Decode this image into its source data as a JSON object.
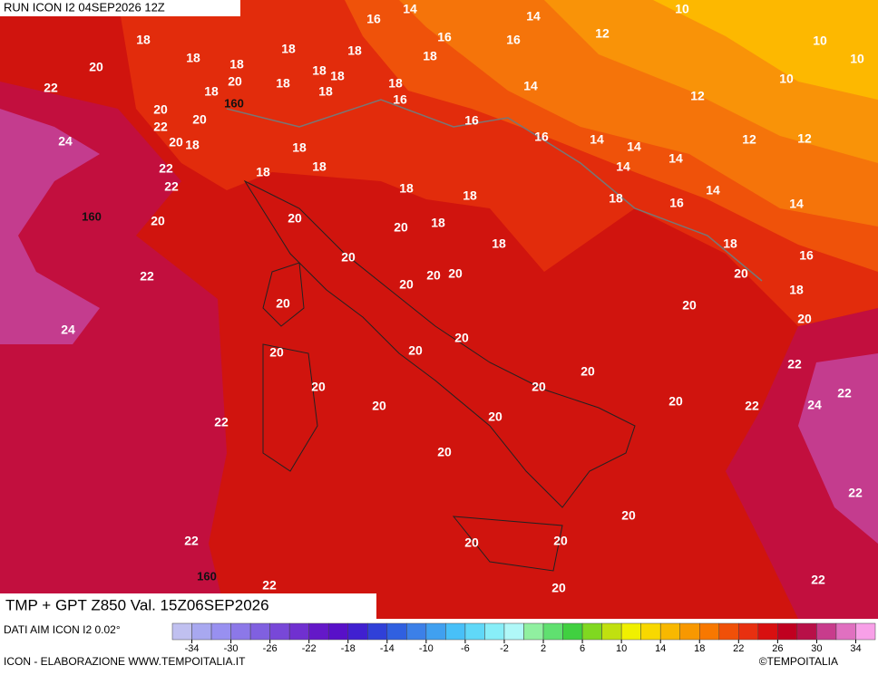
{
  "header": {
    "run": "RUN ICON I2 04SEP2026 12Z"
  },
  "map": {
    "temperature_labels": [
      18,
      20,
      22,
      18,
      18,
      20,
      18,
      20,
      20,
      22,
      20,
      18,
      24,
      22,
      22,
      18,
      18,
      16,
      14,
      16,
      16,
      14,
      12,
      10,
      10,
      10,
      10,
      18,
      18,
      18,
      18,
      18,
      16,
      18,
      14,
      12,
      16,
      16,
      14,
      14,
      14,
      14,
      12,
      12,
      18,
      18,
      18,
      18,
      18,
      18,
      16,
      14,
      14,
      20,
      20,
      20,
      18,
      18,
      20,
      18,
      16,
      22,
      20,
      20,
      20,
      20,
      20,
      18,
      20,
      20,
      24,
      20,
      20,
      20,
      20,
      20,
      20,
      22,
      22,
      20,
      20,
      20,
      22,
      24,
      22,
      20,
      22,
      20,
      22,
      20,
      20,
      20,
      22,
      22
    ],
    "geopotential_labels": [
      160,
      160,
      160
    ]
  },
  "title": "TMP + GPT Z850 Val. 15Z06SEP2026",
  "colorbar": {
    "lim": [
      -36,
      36
    ],
    "ticks": [
      -34,
      -30,
      -26,
      -22,
      -18,
      -14,
      -10,
      -6,
      -2,
      2,
      6,
      10,
      14,
      18,
      22,
      26,
      30,
      34
    ],
    "colors": [
      "#c0c0f0",
      "#a8a8f0",
      "#9890f0",
      "#8c78e8",
      "#8060e0",
      "#7848d8",
      "#7030d0",
      "#6418c8",
      "#5810c8",
      "#4020d0",
      "#3040d8",
      "#3060e0",
      "#3c80e8",
      "#40a0f0",
      "#48c0f8",
      "#60d8f8",
      "#88eef8",
      "#b0f8f8",
      "#90f0a0",
      "#60e070",
      "#40d040",
      "#80d820",
      "#c0e010",
      "#f0f000",
      "#f8d800",
      "#f8b800",
      "#f89800",
      "#f87800",
      "#f05008",
      "#e83010",
      "#d81010",
      "#c00020",
      "#b81048",
      "#c83c8c",
      "#e070c0",
      "#f8a0e8"
    ]
  },
  "footer": {
    "source": "DATI AIM ICON I2 0.02°",
    "credit": "ICON - ELABORAZIONE WWW.TEMPOITALIA.IT",
    "copyright": "©TEMPOITALIA"
  }
}
